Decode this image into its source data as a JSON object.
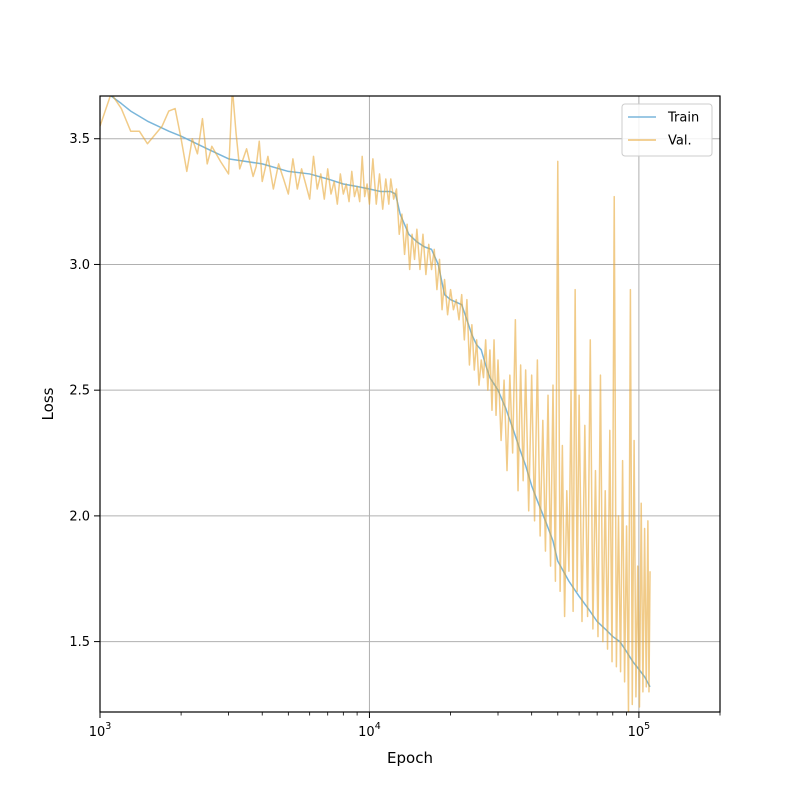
{
  "chart_data": {
    "type": "line",
    "title": "",
    "xlabel": "Epoch",
    "ylabel": "Loss",
    "xscale": "log",
    "xlim": [
      1000,
      200000
    ],
    "ylim": [
      1.22,
      3.67
    ],
    "grid": true,
    "legend_position": "top-right",
    "x_major_ticks": [
      {
        "value": 1000,
        "base": "10",
        "exp": "3"
      },
      {
        "value": 10000,
        "base": "10",
        "exp": "4"
      },
      {
        "value": 100000,
        "base": "10",
        "exp": "5"
      }
    ],
    "y_ticks": [
      {
        "value": 1.5,
        "label": "1.5"
      },
      {
        "value": 2.0,
        "label": "2.0"
      },
      {
        "value": 2.5,
        "label": "2.5"
      },
      {
        "value": 3.0,
        "label": "3.0"
      },
      {
        "value": 3.5,
        "label": "3.5"
      }
    ],
    "series": [
      {
        "name": "Train",
        "color": "#6baed6",
        "points": [
          [
            1000,
            3.7
          ],
          [
            1100,
            3.67
          ],
          [
            1200,
            3.64
          ],
          [
            1300,
            3.61
          ],
          [
            1500,
            3.57
          ],
          [
            1800,
            3.53
          ],
          [
            2000,
            3.51
          ],
          [
            2500,
            3.46
          ],
          [
            3000,
            3.42
          ],
          [
            4000,
            3.4
          ],
          [
            5000,
            3.37
          ],
          [
            6000,
            3.36
          ],
          [
            7000,
            3.34
          ],
          [
            8000,
            3.32
          ],
          [
            9000,
            3.31
          ],
          [
            10000,
            3.3
          ],
          [
            11000,
            3.29
          ],
          [
            12000,
            3.29
          ],
          [
            12500,
            3.28
          ],
          [
            13000,
            3.2
          ],
          [
            14000,
            3.12
          ],
          [
            15000,
            3.09
          ],
          [
            16000,
            3.07
          ],
          [
            17000,
            3.06
          ],
          [
            18000,
            3.0
          ],
          [
            19000,
            2.88
          ],
          [
            20000,
            2.86
          ],
          [
            21000,
            2.85
          ],
          [
            22000,
            2.84
          ],
          [
            23000,
            2.78
          ],
          [
            24000,
            2.72
          ],
          [
            25000,
            2.68
          ],
          [
            26000,
            2.66
          ],
          [
            27000,
            2.6
          ],
          [
            28000,
            2.55
          ],
          [
            30000,
            2.5
          ],
          [
            32000,
            2.43
          ],
          [
            34000,
            2.35
          ],
          [
            36000,
            2.27
          ],
          [
            38000,
            2.2
          ],
          [
            40000,
            2.12
          ],
          [
            42000,
            2.06
          ],
          [
            45000,
            1.98
          ],
          [
            48000,
            1.9
          ],
          [
            50000,
            1.82
          ],
          [
            55000,
            1.74
          ],
          [
            60000,
            1.68
          ],
          [
            65000,
            1.63
          ],
          [
            70000,
            1.58
          ],
          [
            75000,
            1.55
          ],
          [
            80000,
            1.52
          ],
          [
            85000,
            1.5
          ],
          [
            90000,
            1.46
          ],
          [
            95000,
            1.42
          ],
          [
            100000,
            1.39
          ],
          [
            105000,
            1.36
          ],
          [
            110000,
            1.32
          ]
        ]
      },
      {
        "name": "Val.",
        "color": "#e8a838",
        "points": [
          [
            1000,
            3.55
          ],
          [
            1100,
            3.68
          ],
          [
            1200,
            3.62
          ],
          [
            1300,
            3.53
          ],
          [
            1400,
            3.53
          ],
          [
            1500,
            3.48
          ],
          [
            1700,
            3.55
          ],
          [
            1800,
            3.61
          ],
          [
            1900,
            3.62
          ],
          [
            2000,
            3.5
          ],
          [
            2100,
            3.37
          ],
          [
            2200,
            3.5
          ],
          [
            2300,
            3.44
          ],
          [
            2400,
            3.58
          ],
          [
            2500,
            3.4
          ],
          [
            2600,
            3.47
          ],
          [
            2800,
            3.41
          ],
          [
            3000,
            3.36
          ],
          [
            3100,
            3.7
          ],
          [
            3200,
            3.52
          ],
          [
            3300,
            3.38
          ],
          [
            3500,
            3.46
          ],
          [
            3700,
            3.35
          ],
          [
            3800,
            3.39
          ],
          [
            3900,
            3.49
          ],
          [
            4000,
            3.33
          ],
          [
            4200,
            3.43
          ],
          [
            4400,
            3.3
          ],
          [
            4600,
            3.4
          ],
          [
            4800,
            3.34
          ],
          [
            5000,
            3.28
          ],
          [
            5200,
            3.42
          ],
          [
            5400,
            3.3
          ],
          [
            5600,
            3.38
          ],
          [
            5800,
            3.32
          ],
          [
            6000,
            3.26
          ],
          [
            6200,
            3.43
          ],
          [
            6400,
            3.3
          ],
          [
            6600,
            3.36
          ],
          [
            6800,
            3.26
          ],
          [
            7000,
            3.38
          ],
          [
            7200,
            3.28
          ],
          [
            7400,
            3.33
          ],
          [
            7600,
            3.24
          ],
          [
            7800,
            3.36
          ],
          [
            8000,
            3.28
          ],
          [
            8200,
            3.32
          ],
          [
            8400,
            3.25
          ],
          [
            8600,
            3.37
          ],
          [
            8800,
            3.27
          ],
          [
            9000,
            3.31
          ],
          [
            9200,
            3.25
          ],
          [
            9400,
            3.43
          ],
          [
            9600,
            3.27
          ],
          [
            9800,
            3.32
          ],
          [
            10000,
            3.24
          ],
          [
            10300,
            3.42
          ],
          [
            10600,
            3.24
          ],
          [
            10900,
            3.36
          ],
          [
            11200,
            3.22
          ],
          [
            11500,
            3.34
          ],
          [
            11800,
            3.24
          ],
          [
            12000,
            3.34
          ],
          [
            12300,
            3.26
          ],
          [
            12600,
            3.3
          ],
          [
            12900,
            3.12
          ],
          [
            13200,
            3.2
          ],
          [
            13500,
            3.04
          ],
          [
            13800,
            3.16
          ],
          [
            14100,
            2.98
          ],
          [
            14400,
            3.12
          ],
          [
            14700,
            3.02
          ],
          [
            15000,
            3.14
          ],
          [
            15400,
            2.98
          ],
          [
            15800,
            3.12
          ],
          [
            16200,
            2.96
          ],
          [
            16600,
            3.08
          ],
          [
            17000,
            2.98
          ],
          [
            17400,
            3.06
          ],
          [
            17800,
            2.9
          ],
          [
            18200,
            3.02
          ],
          [
            18600,
            2.82
          ],
          [
            19000,
            2.94
          ],
          [
            19500,
            2.8
          ],
          [
            20000,
            2.9
          ],
          [
            20500,
            2.82
          ],
          [
            21000,
            2.86
          ],
          [
            21500,
            2.78
          ],
          [
            22000,
            2.88
          ],
          [
            22500,
            2.7
          ],
          [
            23000,
            2.86
          ],
          [
            23500,
            2.6
          ],
          [
            24000,
            2.76
          ],
          [
            24500,
            2.58
          ],
          [
            25000,
            2.7
          ],
          [
            25500,
            2.52
          ],
          [
            26000,
            2.62
          ],
          [
            26500,
            2.55
          ],
          [
            27000,
            2.7
          ],
          [
            27500,
            2.5
          ],
          [
            28000,
            2.66
          ],
          [
            28500,
            2.42
          ],
          [
            29000,
            2.7
          ],
          [
            29500,
            2.4
          ],
          [
            30000,
            2.62
          ],
          [
            30800,
            2.3
          ],
          [
            31600,
            2.54
          ],
          [
            32400,
            2.18
          ],
          [
            33200,
            2.56
          ],
          [
            34000,
            2.25
          ],
          [
            34800,
            2.78
          ],
          [
            35600,
            2.1
          ],
          [
            36400,
            2.6
          ],
          [
            37200,
            2.14
          ],
          [
            38000,
            2.58
          ],
          [
            39000,
            2.02
          ],
          [
            40000,
            2.56
          ],
          [
            41000,
            1.98
          ],
          [
            42000,
            2.62
          ],
          [
            43000,
            1.92
          ],
          [
            44000,
            2.38
          ],
          [
            45000,
            1.86
          ],
          [
            46000,
            2.48
          ],
          [
            47000,
            1.8
          ],
          [
            48000,
            2.52
          ],
          [
            49000,
            1.74
          ],
          [
            50000,
            3.41
          ],
          [
            51000,
            1.7
          ],
          [
            52000,
            2.28
          ],
          [
            53000,
            1.6
          ],
          [
            54000,
            2.1
          ],
          [
            55000,
            1.78
          ],
          [
            56000,
            2.5
          ],
          [
            57000,
            1.62
          ],
          [
            58000,
            2.9
          ],
          [
            59000,
            1.7
          ],
          [
            60000,
            2.48
          ],
          [
            61500,
            1.58
          ],
          [
            63000,
            2.36
          ],
          [
            64500,
            1.6
          ],
          [
            66000,
            2.7
          ],
          [
            67500,
            1.55
          ],
          [
            69000,
            2.18
          ],
          [
            70500,
            1.52
          ],
          [
            72000,
            2.56
          ],
          [
            73500,
            1.5
          ],
          [
            75000,
            2.1
          ],
          [
            76500,
            1.47
          ],
          [
            78000,
            2.34
          ],
          [
            79500,
            1.42
          ],
          [
            81000,
            3.27
          ],
          [
            82500,
            1.4
          ],
          [
            84000,
            2.0
          ],
          [
            85500,
            1.38
          ],
          [
            87000,
            2.22
          ],
          [
            88500,
            1.34
          ],
          [
            90000,
            1.96
          ],
          [
            91500,
            1.22
          ],
          [
            93000,
            2.9
          ],
          [
            94500,
            1.25
          ],
          [
            96000,
            2.3
          ],
          [
            97500,
            1.28
          ],
          [
            99000,
            1.8
          ],
          [
            100500,
            1.24
          ],
          [
            102000,
            2.05
          ],
          [
            103500,
            1.3
          ],
          [
            105000,
            1.95
          ],
          [
            106500,
            1.32
          ],
          [
            108000,
            1.98
          ],
          [
            109000,
            1.3
          ],
          [
            110000,
            1.78
          ]
        ]
      }
    ]
  }
}
